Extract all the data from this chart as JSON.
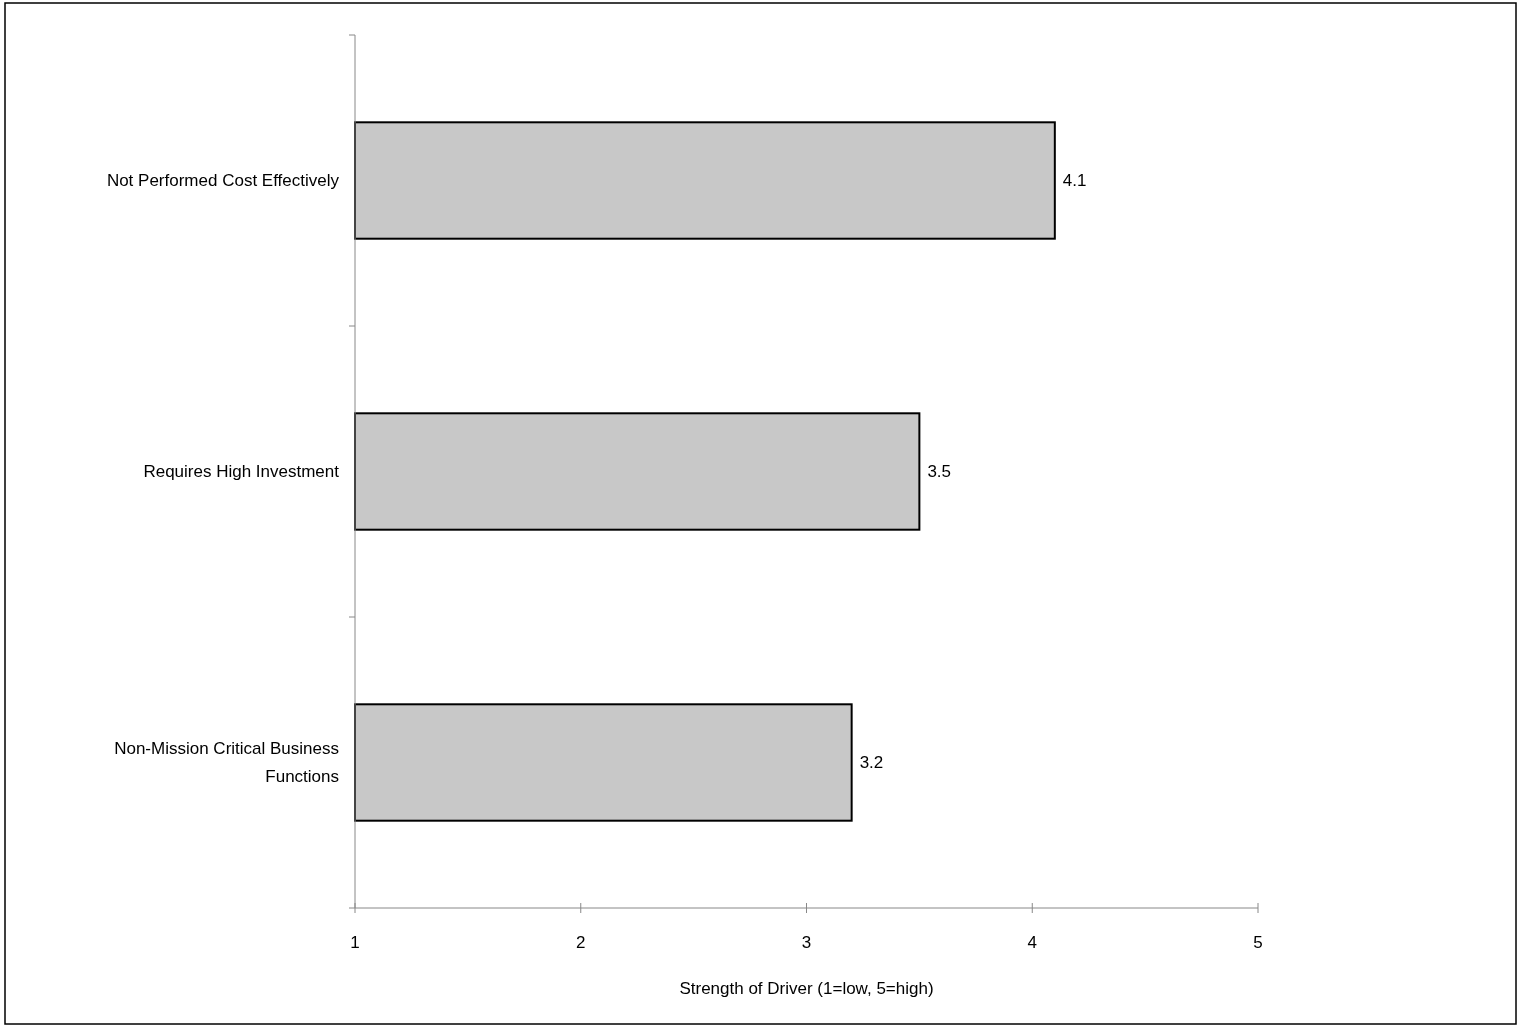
{
  "chart_data": {
    "type": "bar",
    "orientation": "horizontal",
    "xlabel": "Strength of Driver (1=low, 5=high)",
    "categories": [
      "Not Performed Cost Effectively",
      "Requires High Investment",
      "Non-Mission Critical Business Functions"
    ],
    "values": [
      4.1,
      3.5,
      3.2
    ],
    "color": "#c8c8c8",
    "xlim": [
      1,
      5
    ],
    "xticks": [
      1,
      2,
      3,
      4,
      5
    ],
    "data_labels": true,
    "grid": false
  }
}
